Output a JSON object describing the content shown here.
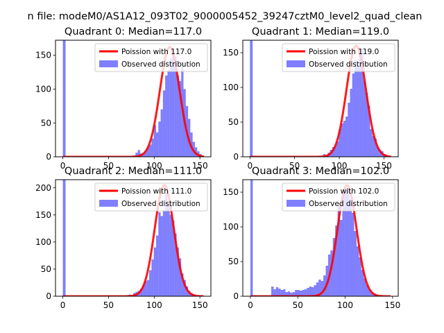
{
  "figure": {
    "suptitle": "n file: modeM0/AS1A12_093T02_9000005452_39247cztM0_level2_quad_clean"
  },
  "colors": {
    "histogram": "#0000ff",
    "poisson_line": "#ff0000"
  },
  "chart_data": [
    {
      "type": "bar",
      "title": "Quadrant 0: Median=117.0",
      "legend": [
        "Poission with 117.0",
        "Observed distribution"
      ],
      "legend_placement": "upper-right",
      "xlim": [
        -8,
        162
      ],
      "ylim": [
        0,
        172
      ],
      "xticks": [
        0,
        50,
        100,
        150
      ],
      "yticks": [
        0,
        50,
        100,
        150
      ],
      "median": 117.0,
      "line_peak": 162,
      "line_sigma": 10.8,
      "bins": [
        {
          "x0": 0,
          "x1": 3,
          "y": 172
        },
        {
          "x0": 77,
          "x1": 79.5,
          "y": 2
        },
        {
          "x0": 79.5,
          "x1": 82,
          "y": 6
        },
        {
          "x0": 82,
          "x1": 84.5,
          "y": 10
        },
        {
          "x0": 84.5,
          "x1": 87,
          "y": 5
        },
        {
          "x0": 87,
          "x1": 89.5,
          "y": 4
        },
        {
          "x0": 89.5,
          "x1": 92,
          "y": 8
        },
        {
          "x0": 92,
          "x1": 94.5,
          "y": 14
        },
        {
          "x0": 94.5,
          "x1": 97,
          "y": 18
        },
        {
          "x0": 97,
          "x1": 99.5,
          "y": 27
        },
        {
          "x0": 99.5,
          "x1": 102,
          "y": 47
        },
        {
          "x0": 102,
          "x1": 104.5,
          "y": 36
        },
        {
          "x0": 104.5,
          "x1": 107,
          "y": 52
        },
        {
          "x0": 107,
          "x1": 109.5,
          "y": 70
        },
        {
          "x0": 109.5,
          "x1": 112,
          "y": 98
        },
        {
          "x0": 112,
          "x1": 114.5,
          "y": 120
        },
        {
          "x0": 114.5,
          "x1": 117,
          "y": 128
        },
        {
          "x0": 117,
          "x1": 119.5,
          "y": 145
        },
        {
          "x0": 119.5,
          "x1": 122,
          "y": 154
        },
        {
          "x0": 122,
          "x1": 124.5,
          "y": 148
        },
        {
          "x0": 124.5,
          "x1": 127,
          "y": 120
        },
        {
          "x0": 127,
          "x1": 129.5,
          "y": 112
        },
        {
          "x0": 129.5,
          "x1": 132,
          "y": 140
        },
        {
          "x0": 132,
          "x1": 134.5,
          "y": 100
        },
        {
          "x0": 134.5,
          "x1": 137,
          "y": 75
        },
        {
          "x0": 137,
          "x1": 139.5,
          "y": 56
        },
        {
          "x0": 139.5,
          "x1": 142,
          "y": 36
        },
        {
          "x0": 142,
          "x1": 144.5,
          "y": 22
        },
        {
          "x0": 144.5,
          "x1": 147,
          "y": 14
        },
        {
          "x0": 147,
          "x1": 149.5,
          "y": 8
        },
        {
          "x0": 149.5,
          "x1": 152,
          "y": 4
        },
        {
          "x0": 152,
          "x1": 154.5,
          "y": 2
        }
      ]
    },
    {
      "type": "bar",
      "title": "Quadrant 1: Median=119.0",
      "legend": [
        "Poission with 119.0",
        "Observed distribution"
      ],
      "legend_placement": "upper-right",
      "xlim": [
        -8,
        166
      ],
      "ylim": [
        0,
        168
      ],
      "xticks": [
        0,
        50,
        100,
        150
      ],
      "yticks": [
        0,
        50,
        100,
        150
      ],
      "median": 119.0,
      "line_peak": 160,
      "line_sigma": 10.9,
      "bins": [
        {
          "x0": 0,
          "x1": 3,
          "y": 168
        },
        {
          "x0": 82,
          "x1": 84.5,
          "y": 4
        },
        {
          "x0": 84.5,
          "x1": 87,
          "y": 2
        },
        {
          "x0": 87,
          "x1": 89.5,
          "y": 6
        },
        {
          "x0": 89.5,
          "x1": 92,
          "y": 10
        },
        {
          "x0": 92,
          "x1": 94.5,
          "y": 14
        },
        {
          "x0": 94.5,
          "x1": 97,
          "y": 16
        },
        {
          "x0": 97,
          "x1": 99.5,
          "y": 22
        },
        {
          "x0": 99.5,
          "x1": 102,
          "y": 40
        },
        {
          "x0": 102,
          "x1": 104.5,
          "y": 48
        },
        {
          "x0": 104.5,
          "x1": 107,
          "y": 52
        },
        {
          "x0": 107,
          "x1": 109.5,
          "y": 58
        },
        {
          "x0": 109.5,
          "x1": 112,
          "y": 78
        },
        {
          "x0": 112,
          "x1": 114.5,
          "y": 98
        },
        {
          "x0": 114.5,
          "x1": 117,
          "y": 120
        },
        {
          "x0": 117,
          "x1": 119.5,
          "y": 140
        },
        {
          "x0": 119.5,
          "x1": 122,
          "y": 132
        },
        {
          "x0": 122,
          "x1": 124.5,
          "y": 150
        },
        {
          "x0": 124.5,
          "x1": 127,
          "y": 156
        },
        {
          "x0": 127,
          "x1": 129.5,
          "y": 110
        },
        {
          "x0": 129.5,
          "x1": 132,
          "y": 92
        },
        {
          "x0": 132,
          "x1": 134.5,
          "y": 74
        },
        {
          "x0": 134.5,
          "x1": 137,
          "y": 40
        },
        {
          "x0": 137,
          "x1": 139.5,
          "y": 30
        },
        {
          "x0": 139.5,
          "x1": 142,
          "y": 26
        },
        {
          "x0": 142,
          "x1": 144.5,
          "y": 14
        },
        {
          "x0": 144.5,
          "x1": 147,
          "y": 10
        },
        {
          "x0": 147,
          "x1": 149.5,
          "y": 8
        },
        {
          "x0": 149.5,
          "x1": 152,
          "y": 4
        },
        {
          "x0": 152,
          "x1": 154.5,
          "y": 2
        }
      ]
    },
    {
      "type": "bar",
      "title": "Quadrant 2: Median=111.0",
      "legend": [
        "Poission with 111.0",
        "Observed distribution"
      ],
      "legend_placement": "upper-right",
      "xlim": [
        -8,
        162
      ],
      "ylim": [
        0,
        215
      ],
      "xticks": [
        0,
        50,
        100,
        150
      ],
      "yticks": [
        0,
        50,
        100,
        150,
        200
      ],
      "median": 111.0,
      "line_peak": 205,
      "line_sigma": 10.5,
      "bins": [
        {
          "x0": 0,
          "x1": 3,
          "y": 215
        },
        {
          "x0": 72,
          "x1": 74.5,
          "y": 3
        },
        {
          "x0": 74.5,
          "x1": 77,
          "y": 2
        },
        {
          "x0": 77,
          "x1": 79.5,
          "y": 6
        },
        {
          "x0": 79.5,
          "x1": 82,
          "y": 8
        },
        {
          "x0": 82,
          "x1": 84.5,
          "y": 10
        },
        {
          "x0": 84.5,
          "x1": 87,
          "y": 14
        },
        {
          "x0": 87,
          "x1": 89.5,
          "y": 20
        },
        {
          "x0": 89.5,
          "x1": 92,
          "y": 28
        },
        {
          "x0": 92,
          "x1": 94.5,
          "y": 30
        },
        {
          "x0": 94.5,
          "x1": 97,
          "y": 48
        },
        {
          "x0": 97,
          "x1": 99.5,
          "y": 68
        },
        {
          "x0": 99.5,
          "x1": 102,
          "y": 90
        },
        {
          "x0": 102,
          "x1": 104.5,
          "y": 112
        },
        {
          "x0": 104.5,
          "x1": 107,
          "y": 155
        },
        {
          "x0": 107,
          "x1": 109.5,
          "y": 148
        },
        {
          "x0": 109.5,
          "x1": 112,
          "y": 158
        },
        {
          "x0": 112,
          "x1": 114.5,
          "y": 190
        },
        {
          "x0": 114.5,
          "x1": 117,
          "y": 168
        },
        {
          "x0": 117,
          "x1": 119.5,
          "y": 150
        },
        {
          "x0": 119.5,
          "x1": 122,
          "y": 140
        },
        {
          "x0": 122,
          "x1": 124.5,
          "y": 116
        },
        {
          "x0": 124.5,
          "x1": 127,
          "y": 90
        },
        {
          "x0": 127,
          "x1": 129.5,
          "y": 70
        },
        {
          "x0": 129.5,
          "x1": 132,
          "y": 42
        },
        {
          "x0": 132,
          "x1": 134.5,
          "y": 30
        },
        {
          "x0": 134.5,
          "x1": 137,
          "y": 18
        },
        {
          "x0": 137,
          "x1": 139.5,
          "y": 10
        },
        {
          "x0": 139.5,
          "x1": 142,
          "y": 6
        },
        {
          "x0": 142,
          "x1": 144.5,
          "y": 3
        }
      ]
    },
    {
      "type": "bar",
      "title": "Quadrant 3: Median=102.0",
      "legend": [
        "Poission with 102.0",
        "Observed distribution"
      ],
      "legend_placement": "upper-right",
      "xlim": [
        -8,
        156
      ],
      "ylim": [
        0,
        168
      ],
      "xticks": [
        0,
        50,
        100,
        150
      ],
      "yticks": [
        0,
        50,
        100,
        150
      ],
      "median": 102.0,
      "line_peak": 160,
      "line_sigma": 10.1,
      "bins": [
        {
          "x0": 0,
          "x1": 2.5,
          "y": 168
        },
        {
          "x0": 22,
          "x1": 24.5,
          "y": 14
        },
        {
          "x0": 24.5,
          "x1": 27,
          "y": 10
        },
        {
          "x0": 27,
          "x1": 29.5,
          "y": 13
        },
        {
          "x0": 29.5,
          "x1": 32,
          "y": 11
        },
        {
          "x0": 32,
          "x1": 34.5,
          "y": 9
        },
        {
          "x0": 34.5,
          "x1": 37,
          "y": 10
        },
        {
          "x0": 37,
          "x1": 39.5,
          "y": 6
        },
        {
          "x0": 39.5,
          "x1": 42,
          "y": 7
        },
        {
          "x0": 42,
          "x1": 44.5,
          "y": 5
        },
        {
          "x0": 44.5,
          "x1": 47,
          "y": 6
        },
        {
          "x0": 47,
          "x1": 49.5,
          "y": 9
        },
        {
          "x0": 49.5,
          "x1": 52,
          "y": 9
        },
        {
          "x0": 52,
          "x1": 54.5,
          "y": 8
        },
        {
          "x0": 54.5,
          "x1": 57,
          "y": 9
        },
        {
          "x0": 57,
          "x1": 59.5,
          "y": 10
        },
        {
          "x0": 59.5,
          "x1": 62,
          "y": 12
        },
        {
          "x0": 62,
          "x1": 64.5,
          "y": 14
        },
        {
          "x0": 64.5,
          "x1": 67,
          "y": 13
        },
        {
          "x0": 67,
          "x1": 69.5,
          "y": 16
        },
        {
          "x0": 69.5,
          "x1": 72,
          "y": 20
        },
        {
          "x0": 72,
          "x1": 74.5,
          "y": 24
        },
        {
          "x0": 74.5,
          "x1": 77,
          "y": 22
        },
        {
          "x0": 77,
          "x1": 79.5,
          "y": 30
        },
        {
          "x0": 79.5,
          "x1": 82,
          "y": 44
        },
        {
          "x0": 82,
          "x1": 84.5,
          "y": 60
        },
        {
          "x0": 84.5,
          "x1": 87,
          "y": 66
        },
        {
          "x0": 87,
          "x1": 89.5,
          "y": 84
        },
        {
          "x0": 89.5,
          "x1": 92,
          "y": 102
        },
        {
          "x0": 92,
          "x1": 94.5,
          "y": 132
        },
        {
          "x0": 94.5,
          "x1": 97,
          "y": 110
        },
        {
          "x0": 97,
          "x1": 99.5,
          "y": 150
        },
        {
          "x0": 99.5,
          "x1": 102,
          "y": 154
        },
        {
          "x0": 102,
          "x1": 104.5,
          "y": 156
        },
        {
          "x0": 104.5,
          "x1": 107,
          "y": 140
        },
        {
          "x0": 107,
          "x1": 109.5,
          "y": 120
        },
        {
          "x0": 109.5,
          "x1": 112,
          "y": 94
        },
        {
          "x0": 112,
          "x1": 114.5,
          "y": 72
        },
        {
          "x0": 114.5,
          "x1": 117,
          "y": 56
        },
        {
          "x0": 117,
          "x1": 119.5,
          "y": 38
        },
        {
          "x0": 119.5,
          "x1": 122,
          "y": 26
        },
        {
          "x0": 122,
          "x1": 124.5,
          "y": 16
        },
        {
          "x0": 124.5,
          "x1": 127,
          "y": 10
        },
        {
          "x0": 127,
          "x1": 129.5,
          "y": 6
        },
        {
          "x0": 129.5,
          "x1": 132,
          "y": 4
        },
        {
          "x0": 132,
          "x1": 134.5,
          "y": 2
        }
      ]
    }
  ]
}
